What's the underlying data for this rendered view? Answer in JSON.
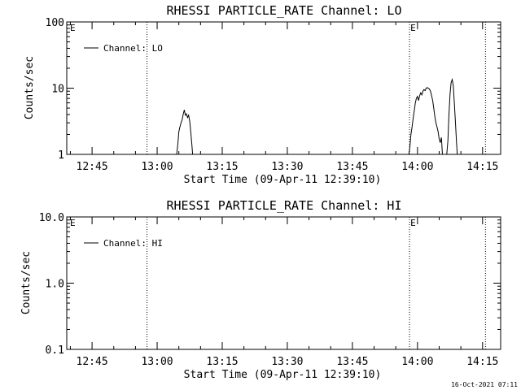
{
  "chart_data": [
    {
      "type": "line",
      "title": "RHESSI PARTICLE_RATE Channel: LO",
      "xlabel": "Start Time (09-Apr-11 12:39:10)",
      "ylabel": "Counts/sec",
      "y_scale": "log",
      "xlim": [
        "12:39:10",
        "14:19:10"
      ],
      "ylim": [
        1,
        100
      ],
      "x_tick_labels": [
        "12:45",
        "13:00",
        "13:15",
        "13:30",
        "13:45",
        "14:00",
        "14:15"
      ],
      "y_tick_labels": [
        "1",
        "10",
        "100"
      ],
      "event_lines": [
        {
          "time": "12:57:40",
          "label": ""
        },
        {
          "time": "13:58:10",
          "label": "E"
        },
        {
          "time": "14:15:40",
          "label": ""
        }
      ],
      "edge_labels": [
        {
          "position": "top-left",
          "text": "E"
        }
      ],
      "legend": {
        "placement": "top-left",
        "entries": [
          "Channel: LO"
        ]
      },
      "grid": false,
      "series": [
        {
          "name": "Channel: LO",
          "points": [
            [
              "13:04:30",
              1.0
            ],
            [
              "13:04:45",
              1.4
            ],
            [
              "13:05:00",
              2.2
            ],
            [
              "13:05:15",
              2.6
            ],
            [
              "13:05:30",
              3.0
            ],
            [
              "13:05:45",
              3.3
            ],
            [
              "13:06:00",
              4.0
            ],
            [
              "13:06:15",
              4.7
            ],
            [
              "13:06:30",
              3.9
            ],
            [
              "13:06:45",
              4.1
            ],
            [
              "13:07:00",
              3.6
            ],
            [
              "13:07:15",
              3.9
            ],
            [
              "13:07:30",
              3.2
            ],
            [
              "13:07:45",
              2.2
            ],
            [
              "13:08:00",
              1.4
            ],
            [
              "13:08:10",
              1.0
            ],
            [
              "13:58:00",
              1.0
            ],
            [
              "13:58:15",
              1.3
            ],
            [
              "13:58:30",
              2.0
            ],
            [
              "13:58:45",
              2.6
            ],
            [
              "13:59:00",
              3.5
            ],
            [
              "13:59:15",
              4.5
            ],
            [
              "13:59:30",
              6.0
            ],
            [
              "13:59:45",
              7.0
            ],
            [
              "14:00:00",
              7.5
            ],
            [
              "14:00:15",
              6.5
            ],
            [
              "14:00:30",
              7.7
            ],
            [
              "14:00:45",
              8.5
            ],
            [
              "14:01:00",
              7.9
            ],
            [
              "14:01:15",
              9.0
            ],
            [
              "14:01:30",
              9.5
            ],
            [
              "14:01:45",
              9.2
            ],
            [
              "14:02:00",
              10.0
            ],
            [
              "14:02:15",
              10.2
            ],
            [
              "14:02:30",
              10.0
            ],
            [
              "14:02:45",
              9.7
            ],
            [
              "14:03:00",
              9.0
            ],
            [
              "14:03:15",
              7.7
            ],
            [
              "14:03:30",
              6.5
            ],
            [
              "14:03:45",
              5.0
            ],
            [
              "14:04:00",
              3.7
            ],
            [
              "14:04:15",
              3.0
            ],
            [
              "14:04:30",
              2.6
            ],
            [
              "14:04:45",
              2.2
            ],
            [
              "14:05:00",
              1.7
            ],
            [
              "14:05:15",
              1.5
            ],
            [
              "14:05:30",
              1.8
            ],
            [
              "14:05:45",
              1.0
            ],
            [
              "14:06:45",
              1.0
            ],
            [
              "14:07:00",
              1.6
            ],
            [
              "14:07:15",
              4.0
            ],
            [
              "14:07:30",
              8.0
            ],
            [
              "14:07:45",
              12.0
            ],
            [
              "14:08:00",
              13.5
            ],
            [
              "14:08:15",
              11.0
            ],
            [
              "14:08:30",
              6.0
            ],
            [
              "14:08:45",
              3.0
            ],
            [
              "14:09:00",
              1.5
            ],
            [
              "14:09:10",
              1.0
            ]
          ]
        }
      ]
    },
    {
      "type": "line",
      "title": "RHESSI PARTICLE_RATE Channel: HI",
      "xlabel": "Start Time (09-Apr-11 12:39:10)",
      "ylabel": "Counts/sec",
      "y_scale": "log",
      "xlim": [
        "12:39:10",
        "14:19:10"
      ],
      "ylim": [
        0.1,
        10
      ],
      "x_tick_labels": [
        "12:45",
        "13:00",
        "13:15",
        "13:30",
        "13:45",
        "14:00",
        "14:15"
      ],
      "y_tick_labels": [
        "0.1",
        "1.0",
        "10.0"
      ],
      "event_lines": [
        {
          "time": "12:57:40",
          "label": ""
        },
        {
          "time": "13:58:10",
          "label": "E"
        },
        {
          "time": "14:15:40",
          "label": ""
        }
      ],
      "edge_labels": [
        {
          "position": "top-left",
          "text": "E"
        }
      ],
      "legend": {
        "placement": "top-left",
        "entries": [
          "Channel: HI"
        ]
      },
      "grid": false,
      "series": [
        {
          "name": "Channel: HI",
          "points": []
        }
      ]
    }
  ],
  "footer": {
    "timestamp": "16-Oct-2021 07:11"
  }
}
